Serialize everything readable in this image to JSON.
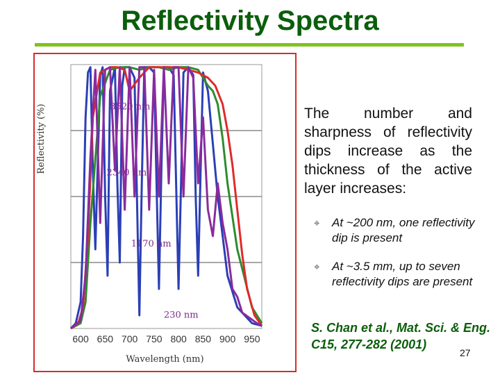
{
  "slide": {
    "title": "Reflectivity Spectra",
    "description": "The number and sharpness of reflectivity dips increase as the thickness of the active layer increases:",
    "bullets": [
      {
        "icon": "cross-bullet-icon",
        "text": "At ~200 nm, one reflectivity dip is present"
      },
      {
        "icon": "cross-bullet-icon",
        "text": "At ~3.5 mm, up to seven reflectivity dips are present"
      }
    ],
    "citation": "S. Chan et al., Mat. Sci. & Eng. C15, 277-282 (2001)",
    "page_number": "27",
    "colors": {
      "title": "#0b5e0b",
      "rule": "#7fc31f",
      "frame": "#d72b2b"
    }
  },
  "chart_data": {
    "type": "line",
    "xlabel": "Wavelength (nm)",
    "ylabel": "Reflectivity (%)",
    "xlim": [
      580,
      970
    ],
    "x_ticks": [
      600,
      650,
      700,
      750,
      800,
      850,
      900,
      950
    ],
    "grid": true,
    "series_labels": [
      "3520 nm",
      "2340 nm",
      "1170 nm",
      "230 nm"
    ],
    "series": [
      {
        "color": "#2b3fb5",
        "x": [
          580,
          590,
          600,
          605,
          610,
          615,
          620,
          625,
          630,
          640,
          645,
          650,
          655,
          660,
          670,
          675,
          680,
          685,
          690,
          700,
          710,
          715,
          720,
          725,
          730,
          740,
          750,
          755,
          760,
          765,
          770,
          780,
          790,
          795,
          800,
          805,
          810,
          820,
          830,
          835,
          840,
          845,
          850,
          860,
          870,
          880,
          890,
          900,
          920,
          950,
          970
        ],
        "y": [
          0.0,
          0.02,
          0.1,
          0.35,
          0.8,
          0.97,
          0.99,
          0.6,
          0.3,
          0.96,
          0.99,
          0.5,
          0.2,
          0.9,
          0.99,
          0.55,
          0.25,
          0.92,
          0.99,
          0.99,
          0.95,
          0.5,
          0.05,
          0.55,
          0.99,
          0.99,
          0.97,
          0.55,
          0.15,
          0.6,
          0.99,
          0.99,
          0.96,
          0.55,
          0.15,
          0.55,
          0.97,
          0.99,
          0.96,
          0.5,
          0.2,
          0.6,
          0.97,
          0.9,
          0.7,
          0.5,
          0.35,
          0.2,
          0.08,
          0.02,
          0.01
        ]
      },
      {
        "color": "#2e8b2e",
        "x": [
          580,
          600,
          610,
          620,
          640,
          660,
          680,
          700,
          720,
          740,
          760,
          780,
          800,
          820,
          840,
          850,
          860,
          870,
          880,
          890,
          900,
          920,
          950,
          970
        ],
        "y": [
          0.0,
          0.02,
          0.1,
          0.4,
          0.88,
          0.98,
          0.99,
          0.99,
          0.98,
          0.99,
          0.99,
          0.98,
          0.99,
          0.99,
          0.98,
          0.95,
          0.92,
          0.9,
          0.85,
          0.72,
          0.55,
          0.3,
          0.08,
          0.02
        ]
      },
      {
        "color": "#e02a2a",
        "x": [
          580,
          595,
          605,
          615,
          625,
          640,
          660,
          675,
          690,
          700,
          720,
          740,
          760,
          780,
          800,
          820,
          840,
          860,
          875,
          890,
          900,
          910,
          920,
          930,
          940,
          955,
          970
        ],
        "y": [
          0.0,
          0.02,
          0.08,
          0.35,
          0.8,
          0.97,
          0.99,
          0.99,
          0.98,
          0.9,
          0.95,
          0.99,
          0.99,
          0.99,
          0.99,
          0.98,
          0.97,
          0.95,
          0.92,
          0.85,
          0.75,
          0.62,
          0.45,
          0.28,
          0.15,
          0.05,
          0.01
        ]
      },
      {
        "color": "#8a2b9e",
        "x": [
          580,
          600,
          610,
          620,
          630,
          640,
          650,
          660,
          670,
          680,
          690,
          700,
          710,
          720,
          730,
          740,
          750,
          760,
          770,
          780,
          790,
          800,
          810,
          820,
          830,
          840,
          850,
          860,
          870,
          880,
          890,
          900,
          910,
          920,
          930,
          945,
          960,
          970
        ],
        "y": [
          0.0,
          0.03,
          0.2,
          0.65,
          0.98,
          0.4,
          0.98,
          0.99,
          0.6,
          0.99,
          0.45,
          0.99,
          0.5,
          0.99,
          0.99,
          0.45,
          0.98,
          0.5,
          0.99,
          0.55,
          0.99,
          0.99,
          0.5,
          0.99,
          0.95,
          0.55,
          0.8,
          0.45,
          0.35,
          0.55,
          0.4,
          0.3,
          0.15,
          0.12,
          0.06,
          0.04,
          0.02,
          0.01
        ]
      }
    ]
  }
}
